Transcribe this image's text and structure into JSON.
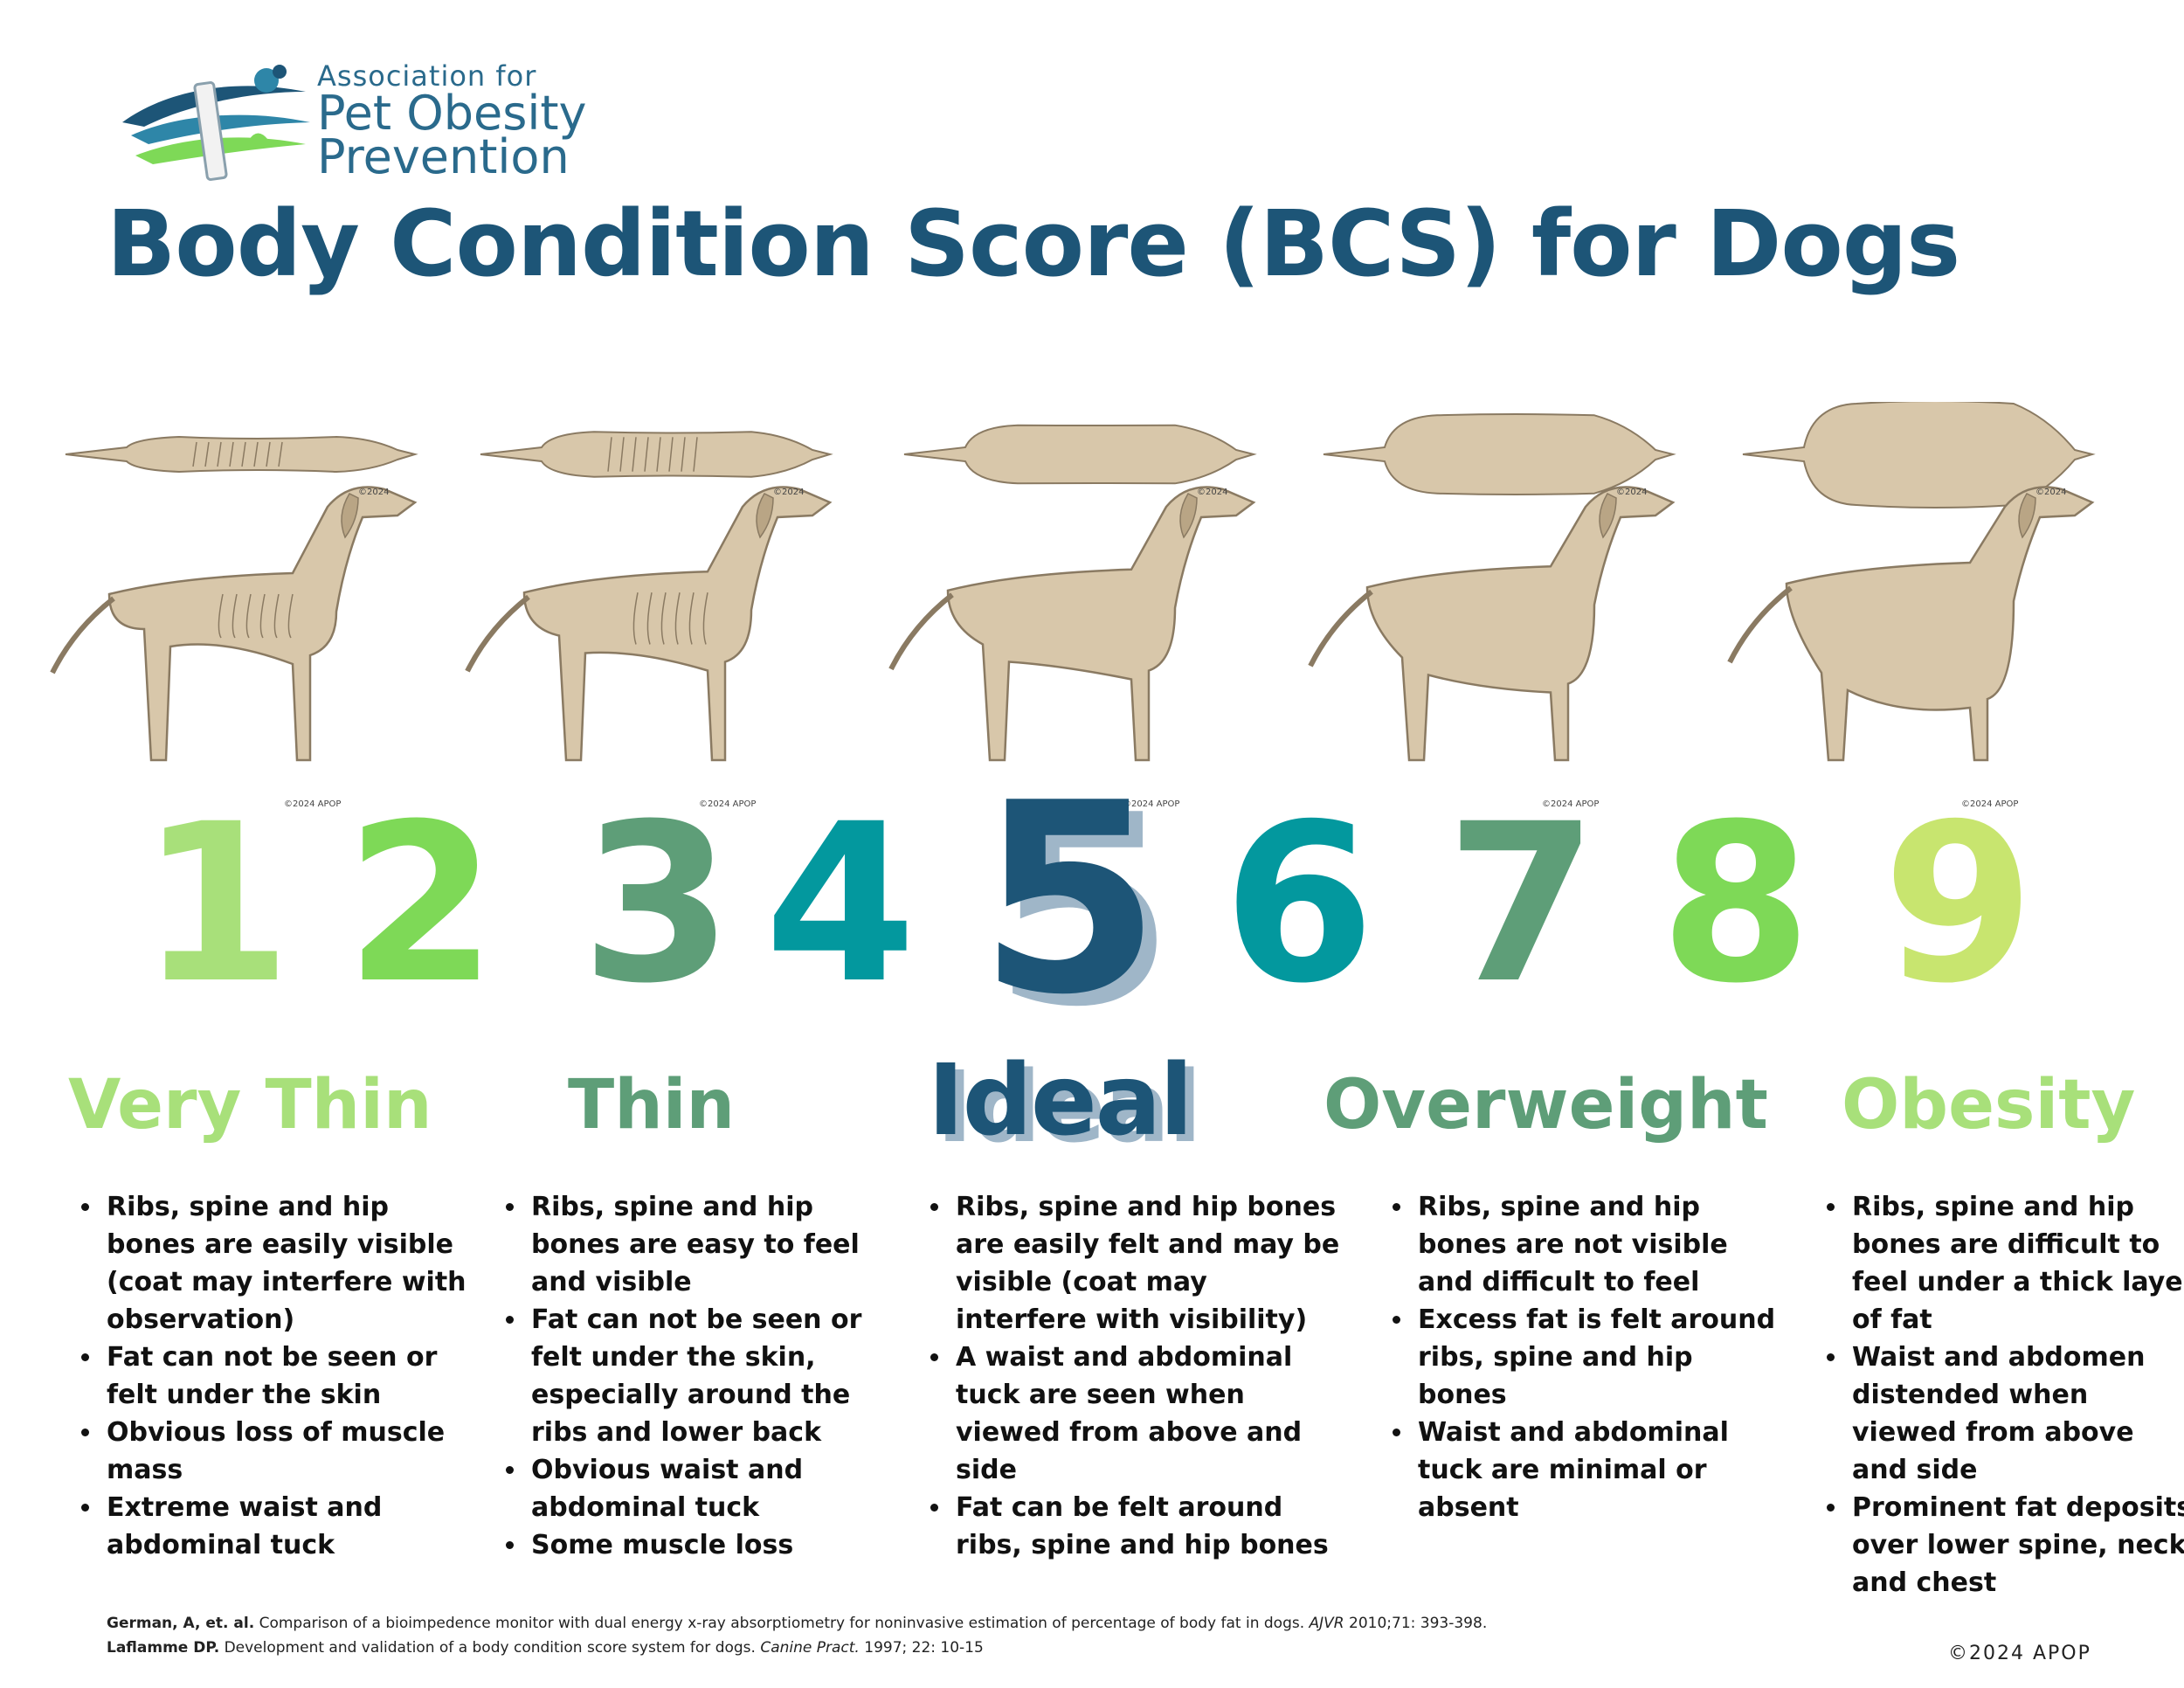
{
  "logo": {
    "line1": "Association for",
    "line2": "Pet Obesity",
    "line3": "Prevention"
  },
  "title": "Body Condition Score (BCS) for Dogs",
  "illustrations": {
    "top_view_tag": "©2024",
    "side_view_tag": "©2024 APOP"
  },
  "scores": [
    {
      "label": "1",
      "color": "#a8e07a"
    },
    {
      "label": "2",
      "color": "#7ed957"
    },
    {
      "label": "3",
      "color": "#5e9e78"
    },
    {
      "label": "4",
      "color": "#03989e"
    },
    {
      "label": "5",
      "color": "#1d5577"
    },
    {
      "label": "6",
      "color": "#03989e"
    },
    {
      "label": "7",
      "color": "#5e9e78"
    },
    {
      "label": "8",
      "color": "#7ed957"
    },
    {
      "label": "9",
      "color": "#c8e56f"
    }
  ],
  "categories": [
    {
      "name": "Very Thin",
      "color": "#a8e07a",
      "bullets": [
        "Ribs, spine and hip bones are easily visible (coat may interfere with observation)",
        "Fat can not be seen or felt under the skin",
        "Obvious loss of muscle mass",
        "Extreme waist and abdominal tuck"
      ]
    },
    {
      "name": "Thin",
      "color": "#5e9e78",
      "bullets": [
        "Ribs, spine and hip bones are easy to feel and visible",
        "Fat can not be seen or felt under the skin, especially around the ribs and lower back",
        "Obvious waist and abdominal tuck",
        "Some muscle loss"
      ]
    },
    {
      "name": "Ideal",
      "color": "#1d5577",
      "bullets": [
        "Ribs, spine and hip bones are easily felt and may be visible (coat may interfere with visibility)",
        "A waist and abdominal tuck are seen when viewed from above and side",
        "Fat can be felt around ribs, spine and hip bones"
      ]
    },
    {
      "name": "Overweight",
      "color": "#5e9e78",
      "bullets": [
        "Ribs, spine and hip bones are not visible and difficult to feel",
        "Excess fat is felt around ribs, spine and hip bones",
        "Waist and abdominal tuck are minimal or absent"
      ]
    },
    {
      "name": "Obesity",
      "color": "#a8e07a",
      "bullets": [
        "Ribs, spine and hip bones are difficult to feel under a thick layer of fat",
        "Waist and abdomen distended when viewed from above and side",
        "Prominent fat deposits over lower spine, neck and chest"
      ]
    }
  ],
  "references": [
    {
      "author": "German, A, et. al.",
      "text": " Comparison of a bioimpedence monitor with dual energy x-ray absorptiometry for noninvasive estimation of percentage of body fat in dogs. ",
      "journal": "AJVR",
      "tail": " 2010;71: 393-398."
    },
    {
      "author": "Laflamme DP.",
      "text": " Development and validation of a body condition score system for dogs. ",
      "journal": "Canine Pract.",
      "tail": " 1997; 22: 10-15"
    }
  ],
  "copyright": "©2024 APOP"
}
